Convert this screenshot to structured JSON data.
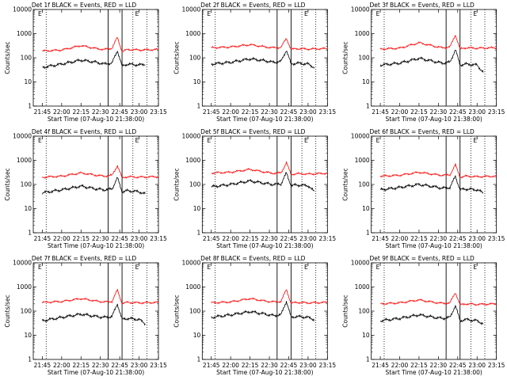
{
  "chart_data": [
    {
      "type": "line",
      "title": "Det 1f BLACK = Events, RED = LLD",
      "xlabel": "Start Time (07-Aug-10 21:38:00)",
      "ylabel": "Counts/sec",
      "yscale": "log",
      "ylim": [
        1,
        10000
      ],
      "x_tick_labels": [
        "21:45",
        "22:00",
        "22:15",
        "22:30",
        "22:45",
        "23:00",
        "23:15"
      ],
      "y_tick_labels": [
        "1",
        "10",
        "100",
        "1000",
        "10000"
      ],
      "flags": [
        "E",
        "E"
      ],
      "series": [
        {
          "color": "#ff0000",
          "x": [
            21.75,
            22.0,
            22.25,
            22.45,
            22.55,
            22.65,
            22.72,
            22.78,
            22.85,
            23.0,
            23.25
          ],
          "y": [
            190,
            210,
            320,
            240,
            220,
            250,
            700,
            180,
            220,
            210,
            220
          ]
        },
        {
          "color": "#000000",
          "x": [
            21.75,
            22.0,
            22.25,
            22.45,
            22.55,
            22.65,
            22.72,
            22.78,
            22.85,
            23.0,
            23.08
          ],
          "y": [
            40,
            55,
            80,
            65,
            55,
            60,
            200,
            45,
            55,
            50,
            55
          ]
        }
      ],
      "vlines_solid": [
        22.6,
        22.78
      ],
      "vlines_dotted": [
        21.8,
        22.92,
        23.1
      ]
    },
    {
      "type": "line",
      "title": "Det 2f BLACK = Events, RED = LLD",
      "xlabel": "Start Time (07-Aug-10 21:38:00)",
      "ylabel": "Counts/sec",
      "yscale": "log",
      "ylim": [
        1,
        10000
      ],
      "x_tick_labels": [
        "21:45",
        "22:00",
        "22:15",
        "22:30",
        "22:45",
        "23:00",
        "23:15"
      ],
      "y_tick_labels": [
        "1",
        "10",
        "100",
        "1000",
        "10000"
      ],
      "flags": [
        "E",
        "E"
      ],
      "series": [
        {
          "color": "#ff0000",
          "x": [
            21.75,
            22.0,
            22.25,
            22.45,
            22.55,
            22.65,
            22.72,
            22.78,
            22.85,
            23.0,
            23.25
          ],
          "y": [
            260,
            280,
            350,
            280,
            260,
            270,
            650,
            220,
            240,
            230,
            240
          ]
        },
        {
          "color": "#000000",
          "x": [
            21.75,
            22.0,
            22.25,
            22.45,
            22.55,
            22.65,
            22.72,
            22.78,
            22.85,
            23.0,
            23.08
          ],
          "y": [
            55,
            65,
            90,
            75,
            65,
            70,
            210,
            55,
            60,
            55,
            40
          ]
        }
      ],
      "vlines_solid": [
        22.6,
        22.78
      ],
      "vlines_dotted": [
        21.8,
        22.92,
        23.1
      ]
    },
    {
      "type": "line",
      "title": "Det 3f BLACK = Events, RED = LLD",
      "xlabel": "Start Time (07-Aug-10 21:38:00)",
      "ylabel": "Counts/sec",
      "yscale": "log",
      "ylim": [
        1,
        10000
      ],
      "x_tick_labels": [
        "21:45",
        "22:00",
        "22:15",
        "22:30",
        "22:45",
        "23:00",
        "23:15"
      ],
      "y_tick_labels": [
        "1",
        "10",
        "100",
        "1000",
        "10000"
      ],
      "flags": [
        "E",
        "E"
      ],
      "series": [
        {
          "color": "#ff0000",
          "x": [
            21.75,
            22.0,
            22.25,
            22.45,
            22.55,
            22.65,
            22.72,
            22.78,
            22.85,
            23.0,
            23.25
          ],
          "y": [
            230,
            250,
            420,
            300,
            260,
            280,
            900,
            230,
            260,
            250,
            260
          ]
        },
        {
          "color": "#000000",
          "x": [
            21.75,
            22.0,
            22.25,
            22.45,
            22.55,
            22.65,
            22.72,
            22.78,
            22.85,
            23.0,
            23.08
          ],
          "y": [
            50,
            60,
            95,
            70,
            60,
            65,
            220,
            50,
            55,
            50,
            25
          ]
        }
      ],
      "vlines_solid": [
        22.6,
        22.78
      ],
      "vlines_dotted": [
        21.8,
        22.92,
        23.1
      ]
    },
    {
      "type": "line",
      "title": "Det 4f BLACK = Events, RED = LLD",
      "xlabel": "Start Time (07-Aug-10 21:38:00)",
      "ylabel": "Counts/sec",
      "yscale": "log",
      "ylim": [
        1,
        10000
      ],
      "x_tick_labels": [
        "21:45",
        "22:00",
        "22:15",
        "22:30",
        "22:45",
        "23:00",
        "23:15"
      ],
      "y_tick_labels": [
        "1",
        "10",
        "100",
        "1000",
        "10000"
      ],
      "flags": [
        "E",
        "E"
      ],
      "series": [
        {
          "color": "#ff0000",
          "x": [
            21.75,
            22.0,
            22.25,
            22.45,
            22.55,
            22.65,
            22.72,
            22.78,
            22.85,
            23.0,
            23.25
          ],
          "y": [
            200,
            220,
            300,
            240,
            220,
            240,
            600,
            190,
            210,
            200,
            210
          ]
        },
        {
          "color": "#000000",
          "x": [
            21.75,
            22.0,
            22.25,
            22.45,
            22.55,
            22.65,
            22.72,
            22.78,
            22.85,
            23.0,
            23.08
          ],
          "y": [
            45,
            60,
            85,
            65,
            60,
            65,
            190,
            50,
            55,
            50,
            40
          ]
        }
      ],
      "vlines_solid": [
        22.6,
        22.78
      ],
      "vlines_dotted": [
        21.8,
        22.92,
        23.1
      ]
    },
    {
      "type": "line",
      "title": "Det 5f BLACK = Events, RED = LLD",
      "xlabel": "Start Time (07-Aug-10 21:38:00)",
      "ylabel": "Counts/sec",
      "yscale": "log",
      "ylim": [
        1,
        10000
      ],
      "x_tick_labels": [
        "21:45",
        "22:00",
        "22:15",
        "22:30",
        "22:45",
        "23:00",
        "23:15"
      ],
      "y_tick_labels": [
        "1",
        "10",
        "100",
        "1000",
        "10000"
      ],
      "flags": [
        "E",
        "E"
      ],
      "series": [
        {
          "color": "#ff0000",
          "x": [
            21.75,
            22.0,
            22.25,
            22.45,
            22.55,
            22.65,
            22.72,
            22.78,
            22.85,
            23.0,
            23.25
          ],
          "y": [
            300,
            320,
            420,
            320,
            290,
            300,
            800,
            260,
            280,
            270,
            290
          ]
        },
        {
          "color": "#000000",
          "x": [
            21.75,
            22.0,
            22.25,
            22.45,
            22.55,
            22.65,
            22.72,
            22.78,
            22.85,
            23.0,
            23.08
          ],
          "y": [
            80,
            100,
            140,
            110,
            100,
            105,
            300,
            90,
            95,
            90,
            50
          ]
        }
      ],
      "vlines_solid": [
        22.6,
        22.78
      ],
      "vlines_dotted": [
        21.8,
        22.92,
        23.1
      ]
    },
    {
      "type": "line",
      "title": "Det 6f BLACK = Events, RED = LLD",
      "xlabel": "Start Time (07-Aug-10 21:38:00)",
      "ylabel": "Counts/sec",
      "yscale": "log",
      "ylim": [
        1,
        10000
      ],
      "x_tick_labels": [
        "21:45",
        "22:00",
        "22:15",
        "22:30",
        "22:45",
        "23:00",
        "23:15"
      ],
      "y_tick_labels": [
        "1",
        "10",
        "100",
        "1000",
        "10000"
      ],
      "flags": [
        "E",
        "E"
      ],
      "series": [
        {
          "color": "#ff0000",
          "x": [
            21.75,
            22.0,
            22.25,
            22.45,
            22.55,
            22.65,
            22.72,
            22.78,
            22.85,
            23.0,
            23.25
          ],
          "y": [
            220,
            240,
            320,
            260,
            240,
            250,
            650,
            200,
            220,
            210,
            220
          ]
        },
        {
          "color": "#000000",
          "x": [
            21.75,
            22.0,
            22.25,
            22.45,
            22.55,
            22.65,
            22.72,
            22.78,
            22.85,
            23.0,
            23.08
          ],
          "y": [
            60,
            75,
            100,
            80,
            70,
            75,
            220,
            60,
            65,
            60,
            45
          ]
        }
      ],
      "vlines_solid": [
        22.6,
        22.78
      ],
      "vlines_dotted": [
        21.8,
        22.92,
        23.1
      ]
    },
    {
      "type": "line",
      "title": "Det 7f BLACK = Events, RED = LLD",
      "xlabel": "Start Time (07-Aug-10 21:38:00)",
      "ylabel": "Counts/sec",
      "yscale": "log",
      "ylim": [
        1,
        10000
      ],
      "x_tick_labels": [
        "21:45",
        "22:00",
        "22:15",
        "22:30",
        "22:45",
        "23:00",
        "23:15"
      ],
      "y_tick_labels": [
        "1",
        "10",
        "100",
        "1000",
        "10000"
      ],
      "flags": [
        "E",
        "E"
      ],
      "series": [
        {
          "color": "#ff0000",
          "x": [
            21.75,
            22.0,
            22.25,
            22.45,
            22.55,
            22.65,
            22.72,
            22.78,
            22.85,
            23.0,
            23.25
          ],
          "y": [
            230,
            250,
            330,
            260,
            240,
            250,
            750,
            210,
            230,
            220,
            230
          ]
        },
        {
          "color": "#000000",
          "x": [
            21.75,
            22.0,
            22.25,
            22.45,
            22.55,
            22.65,
            22.72,
            22.78,
            22.85,
            23.0,
            23.08
          ],
          "y": [
            40,
            55,
            75,
            60,
            55,
            60,
            200,
            45,
            50,
            45,
            30
          ]
        }
      ],
      "vlines_solid": [
        22.6,
        22.78
      ],
      "vlines_dotted": [
        21.8,
        22.92,
        23.1
      ]
    },
    {
      "type": "line",
      "title": "Det 8f BLACK = Events, RED = LLD",
      "xlabel": "Start Time (07-Aug-10 21:38:00)",
      "ylabel": "Counts/sec",
      "yscale": "log",
      "ylim": [
        1,
        10000
      ],
      "x_tick_labels": [
        "21:45",
        "22:00",
        "22:15",
        "22:30",
        "22:45",
        "23:00",
        "23:15"
      ],
      "y_tick_labels": [
        "1",
        "10",
        "100",
        "1000",
        "10000"
      ],
      "flags": [
        "E",
        "E"
      ],
      "series": [
        {
          "color": "#ff0000",
          "x": [
            21.75,
            22.0,
            22.25,
            22.45,
            22.55,
            22.65,
            22.72,
            22.78,
            22.85,
            23.0,
            23.25
          ],
          "y": [
            220,
            240,
            330,
            260,
            240,
            250,
            800,
            210,
            230,
            220,
            230
          ]
        },
        {
          "color": "#000000",
          "x": [
            21.75,
            22.0,
            22.25,
            22.45,
            22.55,
            22.65,
            22.72,
            22.78,
            22.85,
            23.0,
            23.08
          ],
          "y": [
            55,
            70,
            95,
            75,
            65,
            70,
            260,
            55,
            60,
            55,
            45
          ]
        }
      ],
      "vlines_solid": [
        22.6,
        22.78
      ],
      "vlines_dotted": [
        21.8,
        22.92,
        23.1
      ]
    },
    {
      "type": "line",
      "title": "Det 9f BLACK = Events, RED = LLD",
      "xlabel": "Start Time (07-Aug-10 21:38:00)",
      "ylabel": "Counts/sec",
      "yscale": "log",
      "ylim": [
        1,
        10000
      ],
      "x_tick_labels": [
        "21:45",
        "22:00",
        "22:15",
        "22:30",
        "22:45",
        "23:00",
        "23:15"
      ],
      "y_tick_labels": [
        "1",
        "10",
        "100",
        "1000",
        "10000"
      ],
      "flags": [
        "E",
        "E"
      ],
      "series": [
        {
          "color": "#ff0000",
          "x": [
            21.75,
            22.0,
            22.25,
            22.45,
            22.55,
            22.65,
            22.72,
            22.78,
            22.85,
            23.0,
            23.25
          ],
          "y": [
            200,
            220,
            290,
            230,
            210,
            220,
            600,
            180,
            200,
            190,
            200
          ]
        },
        {
          "color": "#000000",
          "x": [
            21.75,
            22.0,
            22.25,
            22.45,
            22.55,
            22.65,
            22.72,
            22.78,
            22.85,
            23.0,
            23.08
          ],
          "y": [
            40,
            50,
            70,
            55,
            50,
            55,
            170,
            40,
            45,
            40,
            30
          ]
        }
      ],
      "vlines_solid": [
        22.6,
        22.78
      ],
      "vlines_dotted": [
        21.8,
        22.92,
        23.1
      ]
    }
  ]
}
